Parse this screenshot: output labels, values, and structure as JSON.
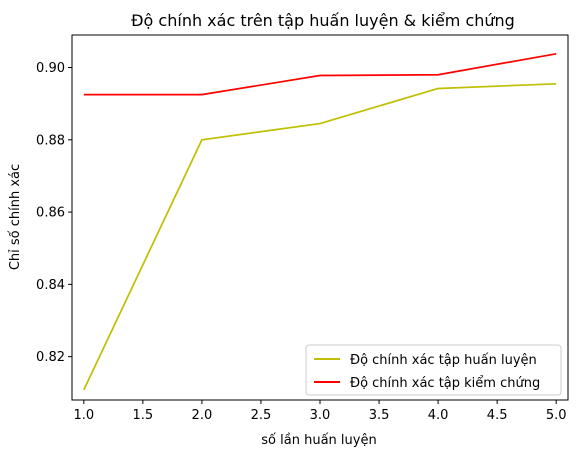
{
  "chart_data": {
    "type": "line",
    "title": "Độ chính xác trên tập huấn luyện & kiểm chứng",
    "xlabel": "số lần huấn luyện",
    "ylabel": "Chỉ số chính xác",
    "xlim": [
      0.9,
      5.1
    ],
    "ylim": [
      0.808,
      0.909
    ],
    "xticks": [
      "1.0",
      "1.5",
      "2.0",
      "2.5",
      "3.0",
      "3.5",
      "4.0",
      "4.5",
      "5.0"
    ],
    "xtick_values": [
      1.0,
      1.5,
      2.0,
      2.5,
      3.0,
      3.5,
      4.0,
      4.5,
      5.0
    ],
    "yticks": [
      "0.82",
      "0.84",
      "0.86",
      "0.88",
      "0.90"
    ],
    "ytick_values": [
      0.82,
      0.84,
      0.86,
      0.88,
      0.9
    ],
    "grid": false,
    "legend_position": "bottom-right",
    "series": [
      {
        "name": "Độ chính xác tập huấn luyện",
        "color": "#bfbf00",
        "x": [
          1,
          2,
          3,
          4,
          5
        ],
        "y": [
          0.8108,
          0.88,
          0.8845,
          0.8942,
          0.8955
        ]
      },
      {
        "name": "Độ chính xác tập kiểm chứng",
        "color": "#ff0000",
        "x": [
          1,
          2,
          3,
          4,
          5
        ],
        "y": [
          0.8925,
          0.8925,
          0.8978,
          0.898,
          0.9038
        ]
      }
    ]
  }
}
